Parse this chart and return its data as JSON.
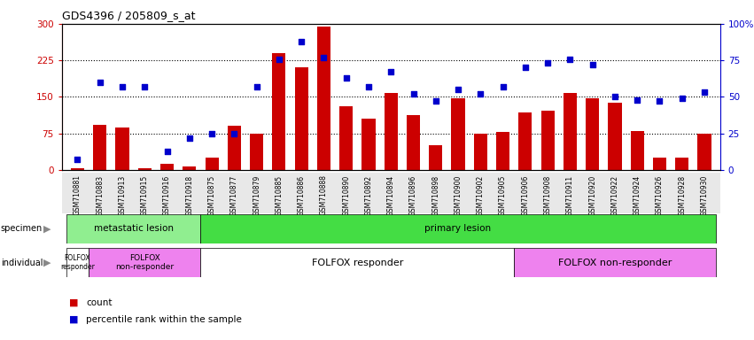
{
  "title": "GDS4396 / 205809_s_at",
  "samples": [
    "GSM710881",
    "GSM710883",
    "GSM710913",
    "GSM710915",
    "GSM710916",
    "GSM710918",
    "GSM710875",
    "GSM710877",
    "GSM710879",
    "GSM710885",
    "GSM710886",
    "GSM710888",
    "GSM710890",
    "GSM710892",
    "GSM710894",
    "GSM710896",
    "GSM710898",
    "GSM710900",
    "GSM710902",
    "GSM710905",
    "GSM710906",
    "GSM710908",
    "GSM710911",
    "GSM710920",
    "GSM710922",
    "GSM710924",
    "GSM710926",
    "GSM710928",
    "GSM710930"
  ],
  "counts": [
    3,
    92,
    88,
    3,
    12,
    8,
    25,
    90,
    75,
    240,
    210,
    295,
    130,
    105,
    158,
    112,
    50,
    148,
    75,
    78,
    118,
    122,
    158,
    148,
    138,
    80,
    25,
    25,
    75
  ],
  "percentiles": [
    7,
    60,
    57,
    57,
    13,
    22,
    25,
    25,
    57,
    76,
    88,
    77,
    63,
    57,
    67,
    52,
    47,
    55,
    52,
    57,
    70,
    73,
    76,
    72,
    50,
    48,
    47,
    49,
    53
  ],
  "bar_color": "#CC0000",
  "dot_color": "#0000CC",
  "left_ylim": [
    0,
    300
  ],
  "right_ylim": [
    0,
    100
  ],
  "left_yticks": [
    0,
    75,
    150,
    225,
    300
  ],
  "right_yticks": [
    0,
    25,
    50,
    75,
    100
  ],
  "right_yticklabels": [
    "0",
    "25",
    "50",
    "75",
    "100%"
  ],
  "specimen_groups": [
    {
      "label": "metastatic lesion",
      "start": 0,
      "end": 6,
      "color": "#90EE90"
    },
    {
      "label": "primary lesion",
      "start": 6,
      "end": 29,
      "color": "#44DD44"
    }
  ],
  "individual_groups": [
    {
      "label": "FOLFOX\nresponder",
      "start": 0,
      "end": 1,
      "color": "#FFFFFF",
      "fontsize": 5.5
    },
    {
      "label": "FOLFOX\nnon-responder",
      "start": 1,
      "end": 6,
      "color": "#EE82EE",
      "fontsize": 6.5
    },
    {
      "label": "FOLFOX responder",
      "start": 6,
      "end": 20,
      "color": "#FFFFFF",
      "fontsize": 8
    },
    {
      "label": "FOLFOX non-responder",
      "start": 20,
      "end": 29,
      "color": "#EE82EE",
      "fontsize": 8
    }
  ]
}
